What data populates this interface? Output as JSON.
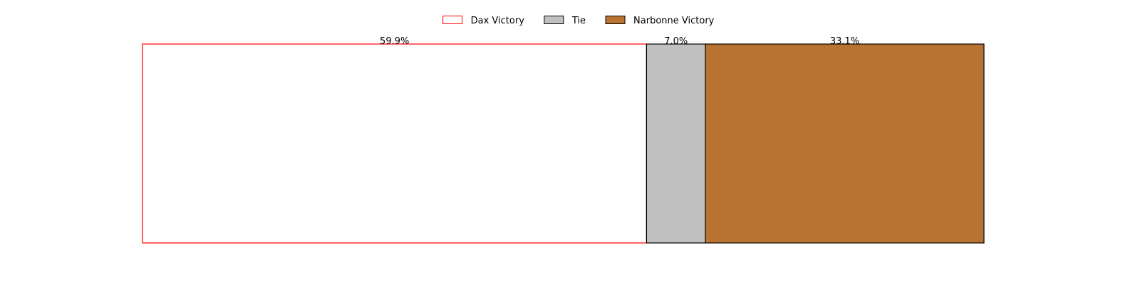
{
  "chart_data": {
    "type": "bar",
    "orientation": "horizontal-stacked",
    "axes_visible": false,
    "grid": false,
    "legend_position": "top-center",
    "xlim": [
      0,
      100
    ],
    "series": [
      {
        "name": "Dax Victory",
        "value": 59.9,
        "label": "59.9%",
        "fill": "#ffffff",
        "edge": "#ff0000"
      },
      {
        "name": "Tie",
        "value": 7.0,
        "label": "7.0%",
        "fill": "#c0c0c0",
        "edge": "#000000"
      },
      {
        "name": "Narbonne Victory",
        "value": 33.1,
        "label": "33.1%",
        "fill": "#b87333",
        "edge": "#000000"
      }
    ]
  }
}
